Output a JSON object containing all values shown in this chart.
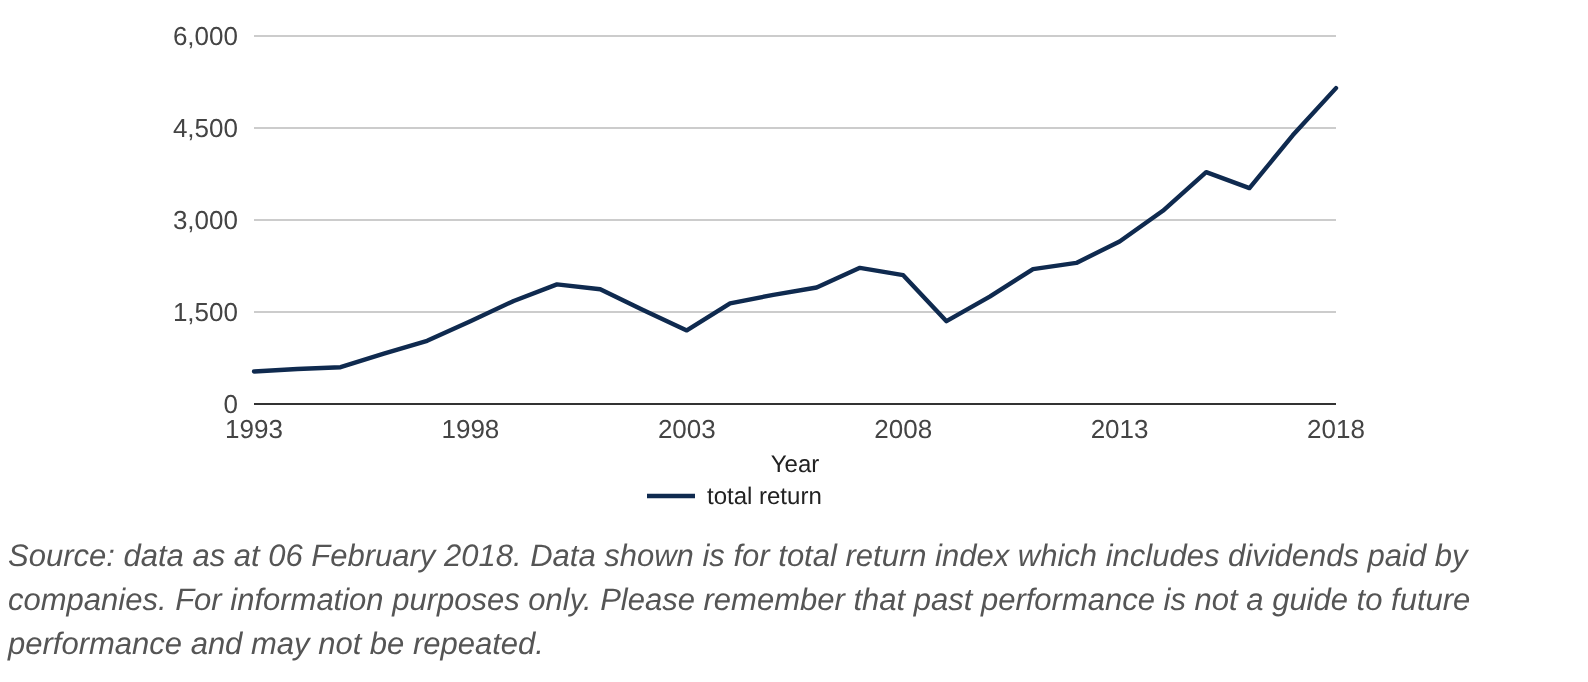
{
  "chart_data": {
    "type": "line",
    "xlabel": "Year",
    "x": [
      1993,
      1994,
      1995,
      1996,
      1997,
      1998,
      1999,
      2000,
      2001,
      2002,
      2003,
      2004,
      2005,
      2006,
      2007,
      2008,
      2009,
      2010,
      2011,
      2012,
      2013,
      2014,
      2015,
      2016,
      2017,
      2018
    ],
    "series": [
      {
        "name": "total return",
        "color": "#0f2a4f",
        "values": [
          530,
          570,
          600,
          820,
          1030,
          1350,
          1680,
          1950,
          1870,
          1530,
          1200,
          1640,
          1780,
          1900,
          2220,
          2100,
          1350,
          1750,
          2200,
          2300,
          2650,
          3150,
          3780,
          3520,
          4380,
          5150
        ]
      }
    ],
    "xlim": [
      1993,
      2018
    ],
    "xticks": [
      1993,
      1998,
      2003,
      2008,
      2013,
      2018
    ],
    "ylim": [
      0,
      6000
    ],
    "yticks": [
      {
        "value": 0,
        "label": "0"
      },
      {
        "value": 1500,
        "label": "1,500"
      },
      {
        "value": 3000,
        "label": "3,000"
      },
      {
        "value": 4500,
        "label": "4,500"
      },
      {
        "value": 6000,
        "label": "6,000"
      }
    ],
    "grid": "y",
    "legend": "bottom",
    "line_style": "solid",
    "marker": "none",
    "annotations": [
      "Source: data as at 06 February 2018. Data shown is for total return index which includes dividends paid by companies. For information purposes only. Please remember that past performance is not a guide to future performance and may not be repeated."
    ]
  }
}
